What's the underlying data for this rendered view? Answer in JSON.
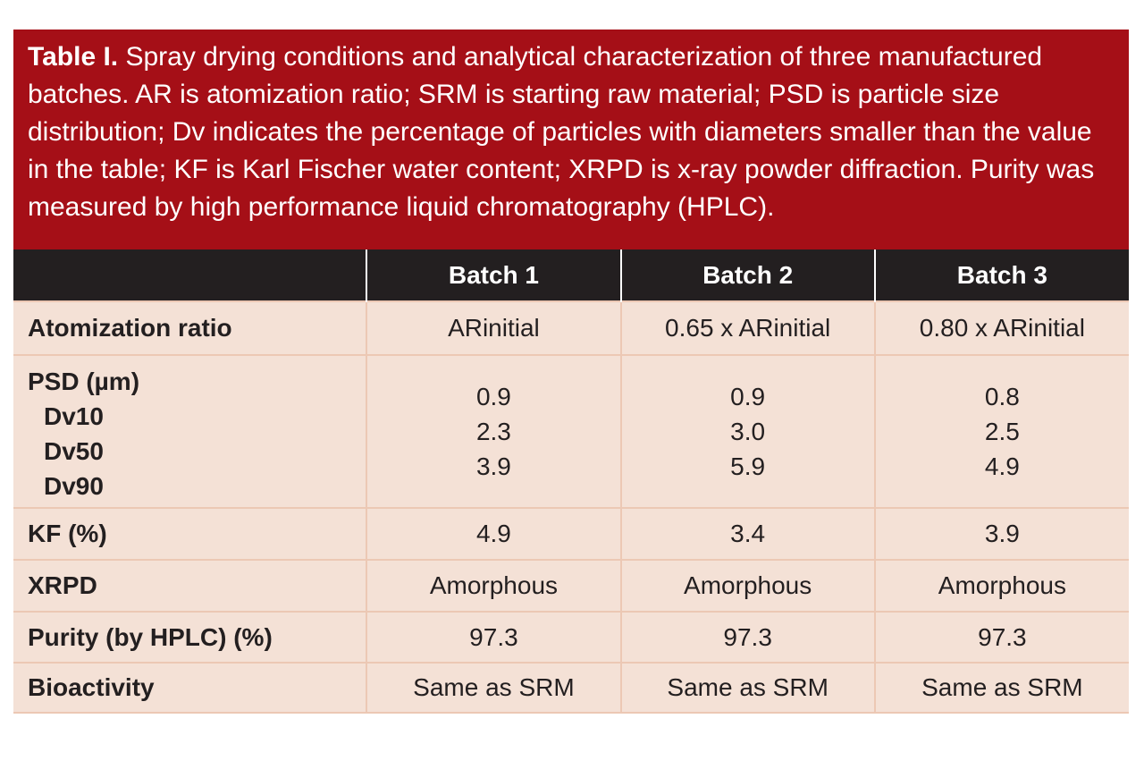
{
  "caption": {
    "label": "Table I.",
    "text": " Spray drying conditions and analytical characterization of three manufactured batches. AR is atomization ratio; SRM is starting raw material; PSD is particle size distribution; Dv indicates the percentage of particles with diameters smaller than the value in the table; KF is Karl Fischer water content; XRPD is x-ray powder diffraction. Purity was measured by high performance liquid chromatography (HPLC)."
  },
  "table": {
    "headers": [
      "",
      "Batch 1",
      "Batch 2",
      "Batch 3"
    ],
    "rows": {
      "atomization": {
        "label": "Atomization ratio",
        "values": [
          "ARinitial",
          "0.65 x ARinitial",
          "0.80 x ARinitial"
        ]
      },
      "psd": {
        "label": "PSD (µm)",
        "sublabels": [
          "Dv10",
          "Dv50",
          "Dv90"
        ],
        "batch1": [
          "0.9",
          "2.3",
          "3.9"
        ],
        "batch2": [
          "0.9",
          "3.0",
          "5.9"
        ],
        "batch3": [
          "0.8",
          "2.5",
          "4.9"
        ]
      },
      "kf": {
        "label": "KF (%)",
        "values": [
          "4.9",
          "3.4",
          "3.9"
        ]
      },
      "xrpd": {
        "label": "XRPD",
        "values": [
          "Amorphous",
          "Amorphous",
          "Amorphous"
        ]
      },
      "purity": {
        "label": "Purity (by HPLC) (%)",
        "values": [
          "97.3",
          "97.3",
          "97.3"
        ]
      },
      "bioactivity": {
        "label": "Bioactivity",
        "values": [
          "Same as SRM",
          "Same as SRM",
          "Same as SRM"
        ]
      }
    }
  },
  "colors": {
    "caption_bg": "#a50f17",
    "header_bg": "#231f20",
    "cell_bg": "#f4e1d6",
    "border": "#ecc8b4"
  }
}
